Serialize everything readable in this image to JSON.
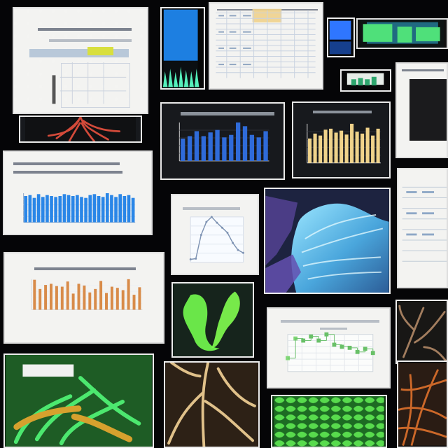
{
  "collage": {
    "background": "#050507",
    "panels": [
      {
        "id": "top-left-diagram",
        "icon": "document-chart-icon"
      },
      {
        "id": "blue-columns-photo",
        "icon": "image-icon"
      },
      {
        "id": "spreadsheet",
        "icon": "spreadsheet-icon"
      },
      {
        "id": "top-right-thumbnails",
        "icon": "thumbnail-icon"
      },
      {
        "id": "red-roots-photo",
        "icon": "image-icon"
      },
      {
        "id": "blue-bar-dark-chart",
        "icon": "bar-chart-icon"
      },
      {
        "id": "gold-bar-dark-chart",
        "icon": "bar-chart-icon"
      },
      {
        "id": "right-sheet",
        "icon": "spreadsheet-icon"
      },
      {
        "id": "large-blue-bar-chart",
        "icon": "bar-chart-icon"
      },
      {
        "id": "line-chart-card",
        "icon": "line-chart-icon"
      },
      {
        "id": "leaf-micrograph",
        "icon": "microscope-icon"
      },
      {
        "id": "orange-bar-chart",
        "icon": "bar-chart-icon"
      },
      {
        "id": "green-plant-photo",
        "icon": "plant-icon"
      },
      {
        "id": "step-chart-card",
        "icon": "line-chart-icon"
      },
      {
        "id": "brown-roots-photo",
        "icon": "root-icon"
      },
      {
        "id": "green-tiles-panel",
        "icon": "grid-icon"
      },
      {
        "id": "orange-mesh-panel",
        "icon": "root-icon"
      },
      {
        "id": "bottom-green-plant",
        "icon": "plant-icon"
      },
      {
        "id": "bottom-root-photo",
        "icon": "root-icon"
      }
    ]
  },
  "chart_data": [
    {
      "type": "bar",
      "categories": [
        "1",
        "2",
        "3",
        "4",
        "5",
        "6",
        "7",
        "8",
        "9",
        "10",
        "11",
        "12",
        "13"
      ],
      "values": [
        18,
        20,
        24,
        20,
        23,
        25,
        19,
        21,
        31,
        28,
        21,
        19,
        24
      ]
    },
    {
      "type": "bar",
      "categories": [
        "1",
        "2",
        "3",
        "4",
        "5",
        "6",
        "7",
        "8",
        "9",
        "10",
        "11",
        "12",
        "13",
        "14"
      ],
      "values": [
        25,
        30,
        28,
        34,
        35,
        31,
        33,
        29,
        40,
        32,
        30,
        36,
        28,
        35
      ]
    },
    {
      "type": "bar",
      "categories": [
        "1",
        "2",
        "3",
        "4",
        "5",
        "6",
        "7",
        "8",
        "9",
        "10",
        "11",
        "12",
        "13",
        "14",
        "15",
        "16",
        "17",
        "18",
        "19",
        "20",
        "21",
        "22",
        "23",
        "24",
        "25",
        "26"
      ],
      "values": [
        28,
        29,
        26,
        30,
        27,
        29,
        28,
        27,
        28,
        30,
        29,
        28,
        29,
        27,
        26,
        29,
        30,
        28,
        27,
        31,
        29,
        27,
        30,
        28,
        29,
        26
      ]
    },
    {
      "type": "line",
      "x": [
        0,
        1,
        2,
        3,
        4,
        5,
        6,
        7,
        8,
        9,
        10
      ],
      "values": [
        4,
        5,
        38,
        56,
        63,
        55,
        48,
        41,
        27,
        17,
        13
      ]
    },
    {
      "type": "bar",
      "categories": [
        "1",
        "2",
        "3",
        "4",
        "5",
        "6",
        "7",
        "8",
        "9",
        "10",
        "11",
        "12",
        "13",
        "14",
        "15",
        "16",
        "17",
        "18",
        "19",
        "20"
      ],
      "values": [
        52,
        36,
        43,
        45,
        41,
        40,
        49,
        28,
        45,
        42,
        30,
        36,
        50,
        29,
        40,
        38,
        34,
        53,
        26,
        39
      ]
    },
    {
      "type": "scatter",
      "x": [
        1,
        2,
        3,
        4,
        5,
        6,
        7,
        8,
        9,
        10,
        11,
        12
      ],
      "values": [
        13,
        32,
        30,
        34,
        30,
        36,
        26,
        24,
        23,
        19,
        22,
        18
      ]
    }
  ]
}
